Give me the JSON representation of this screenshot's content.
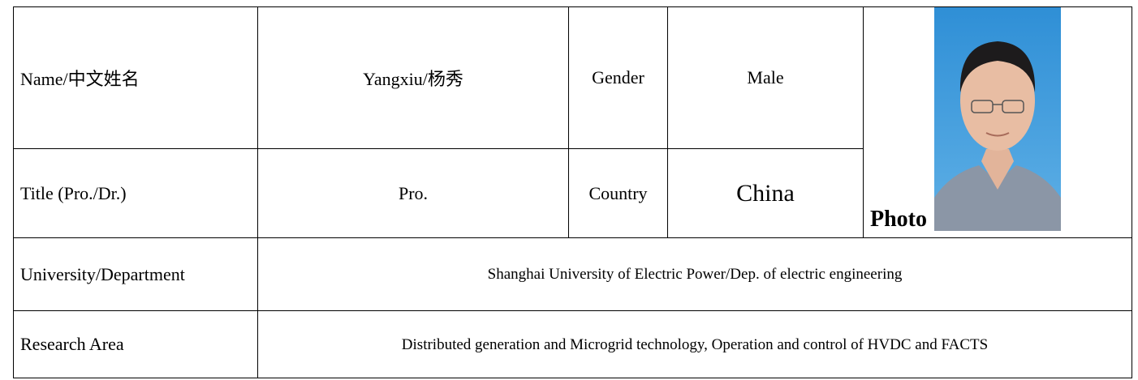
{
  "table": {
    "rows": [
      [
        "Name/中文姓名",
        "Yangxiu/杨秀",
        "Gender",
        "Male"
      ],
      [
        "Title (Pro./Dr.)",
        "Pro.",
        "Country",
        "China"
      ],
      [
        "University/Department",
        "Shanghai University of Electric Power/Dep. of electric engineering"
      ],
      [
        "Research Area",
        "Distributed generation and Microgrid technology, Operation and control of HVDC and FACTS"
      ]
    ],
    "photo_label": "Photo"
  }
}
